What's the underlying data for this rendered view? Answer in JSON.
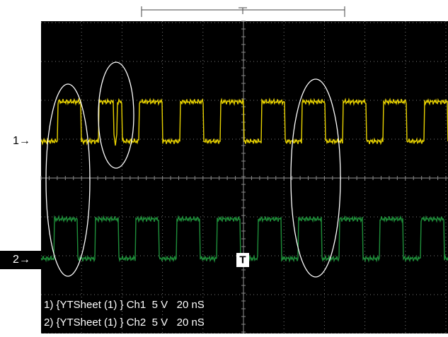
{
  "screen": {
    "channel_markers": [
      "1→",
      "2→"
    ],
    "trigger_marker": "T",
    "info_lines": [
      "1) {YTSheet (1) } Ch1  5 V   20 nS",
      "2) {YTSheet (1) } Ch2  5 V   20 nS"
    ]
  }
}
